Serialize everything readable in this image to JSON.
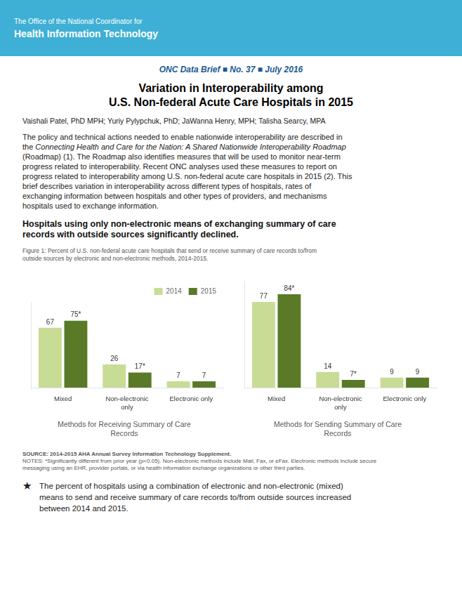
{
  "subtitle": "ONC Data Brief ■ No. 37 ■ July 2016",
  "title": [
    "Variation in Interoperability among",
    "U.S. Non-federal Acute Care Hospitals in 2015"
  ],
  "annotations": [
    "The Office of the National Coordinator for",
    "Health Information Technology",
    "Vaishali Patel, PhD MPH; Yuriy Pylypchuk, PhD; JaWanna Henry, MPH; Talisha Searcy, MPA",
    "The policy and technical actions needed to enable nationwide interoperability are described in",
    "the ",
    "Connecting Health and Care for the Nation: A Shared Nationwide Interoperability Roadmap",
    "(Roadmap) (1).  The Roadmap also identifies measures that will be used to monitor near-term",
    "progress related to interoperability.  Recent ONC analyses used these measures to report on",
    "progress related to interoperability among U.S. non-federal acute care hospitals in 2015 (2).  This",
    "brief describes variation in interoperability across different types of hospitals, rates of",
    "exchanging information between hospitals and other types of providers, and mechanisms",
    "hospitals used to exchange information.",
    "Hospitals using only non-electronic means of exchanging summary of care",
    "records with outside sources significantly declined.",
    "Figure 1: Percent of U.S. non-federal acute care hospitals that send or receive summary of care records to/from",
    "outside sources by electronic and non-electronic methods, 2014-2015.",
    "SOURCE: 2014-2015 AHA Annual Survey Information Technology Supplement.",
    "NOTES: *Significantly different from prior year (p<0.05). Non-electronic methods include Mail, Fax, or eFax. Electronic methods include secure",
    "messaging using an EHR, provider portals, or via health information exchange organizations or other third parties.",
    "★",
    "The percent of hospitals using a combination of electronic and non-electronic (mixed)",
    "means to send and receive summary of care records to/from outside sources increased",
    "between 2014 and 2015."
  ],
  "chart_data": [
    {
      "type": "bar",
      "title": [
        "Methods for Receiving Summary of Care",
        "Records"
      ],
      "categories": [
        "Mixed",
        "Non-electronic\nonly",
        "Electronic only"
      ],
      "series": [
        {
          "name": "2014",
          "color": "#c8dc96",
          "values": [
            67,
            26,
            7
          ],
          "value_labels": [
            "67",
            "26",
            "7"
          ]
        },
        {
          "name": "2015",
          "color": "#5a7a28",
          "values": [
            75,
            17,
            7
          ],
          "value_labels": [
            "75*",
            "17*",
            "7"
          ]
        }
      ],
      "ylim": [
        0,
        96
      ],
      "grid": false,
      "legend": "upper right",
      "data_labels": true,
      "tick_labels": "x"
    },
    {
      "type": "bar",
      "title": [
        "Methods for Sending Summary of Care",
        "Records"
      ],
      "categories": [
        "Mixed",
        "Non-electronic\nonly",
        "Electronic only"
      ],
      "series": [
        {
          "name": "2014",
          "color": "#c8dc96",
          "values": [
            77,
            14,
            9
          ],
          "value_labels": [
            "77",
            "14",
            "9"
          ]
        },
        {
          "name": "2015",
          "color": "#5a7a28",
          "values": [
            84,
            7,
            9
          ],
          "value_labels": [
            "84*",
            "7*",
            "9"
          ]
        }
      ],
      "ylim": [
        0,
        96
      ],
      "grid": false,
      "data_labels": true,
      "tick_labels": "x"
    }
  ]
}
